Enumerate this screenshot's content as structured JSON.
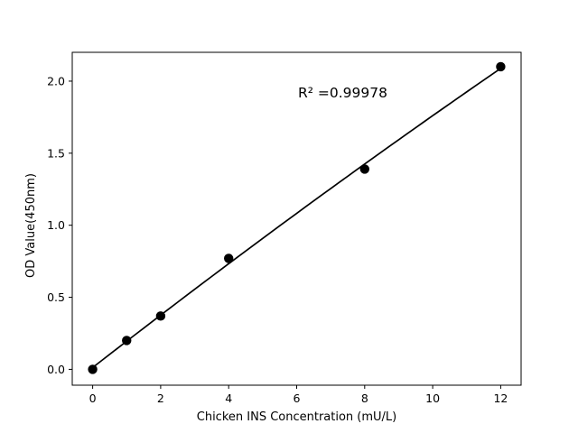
{
  "chart_data": {
    "type": "scatter",
    "title": "",
    "xlabel": "Chicken INS Concentration (mU/L)",
    "ylabel": "OD Value(450nm)",
    "x": [
      0,
      1,
      2,
      4,
      8,
      12
    ],
    "y": [
      0.0,
      0.2,
      0.37,
      0.77,
      1.39,
      2.1
    ],
    "xticks": [
      0,
      2,
      4,
      6,
      8,
      10,
      12
    ],
    "yticks": [
      0.0,
      0.5,
      1.0,
      1.5,
      2.0
    ],
    "xlim": [
      -0.6,
      12.6
    ],
    "ylim": [
      -0.11,
      2.2
    ],
    "grid": false,
    "legend": null,
    "annotation": {
      "text": "R² =0.99978"
    },
    "fit_curve": {
      "kind": "quadratic",
      "a": 0.0123,
      "b": 0.1837,
      "c": -0.00089,
      "x_start": 0,
      "x_end": 12
    },
    "colors": {
      "marker": "#000000",
      "line": "#000000",
      "axis": "#000000",
      "text": "#000000",
      "background": "#ffffff"
    }
  }
}
